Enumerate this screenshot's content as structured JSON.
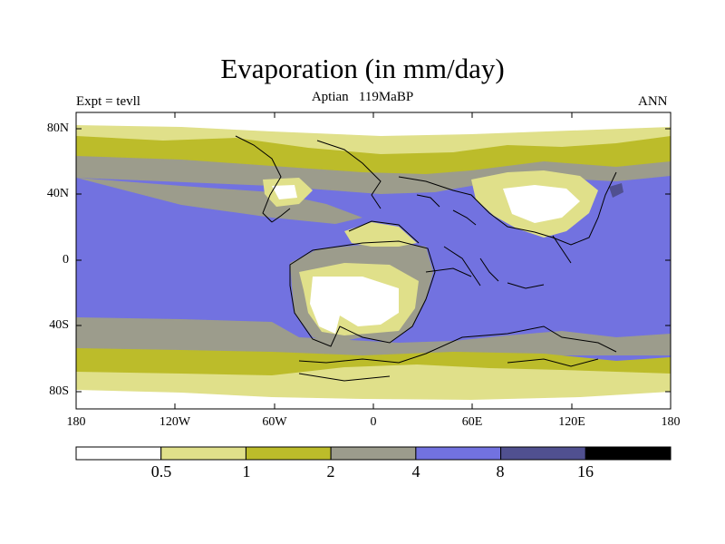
{
  "title": "Evaporation (in mm/day)",
  "subtitle": "Aptian   119MaBP",
  "left_label": "Expt = tevll",
  "right_label": "ANN",
  "lat_ticks": [
    "80N",
    "40N",
    "0",
    "40S",
    "80S"
  ],
  "lon_ticks": [
    "180",
    "120W",
    "60W",
    "0",
    "60E",
    "120E",
    "180"
  ],
  "colorbar": {
    "colors": [
      "#ffffff",
      "#e0e08a",
      "#bcbc2a",
      "#9c9c8c",
      "#7272e0",
      "#505090",
      "#000000"
    ],
    "labels": [
      "0.5",
      "1",
      "2",
      "4",
      "8",
      "16"
    ]
  },
  "colors": {
    "lt0_5": "#ffffff",
    "b0_5_1": "#e0e08a",
    "b1_2": "#bcbc2a",
    "b2_4": "#9c9c8c",
    "b4_8": "#7272e0",
    "b8_16": "#505090",
    "coast": "#000000"
  }
}
